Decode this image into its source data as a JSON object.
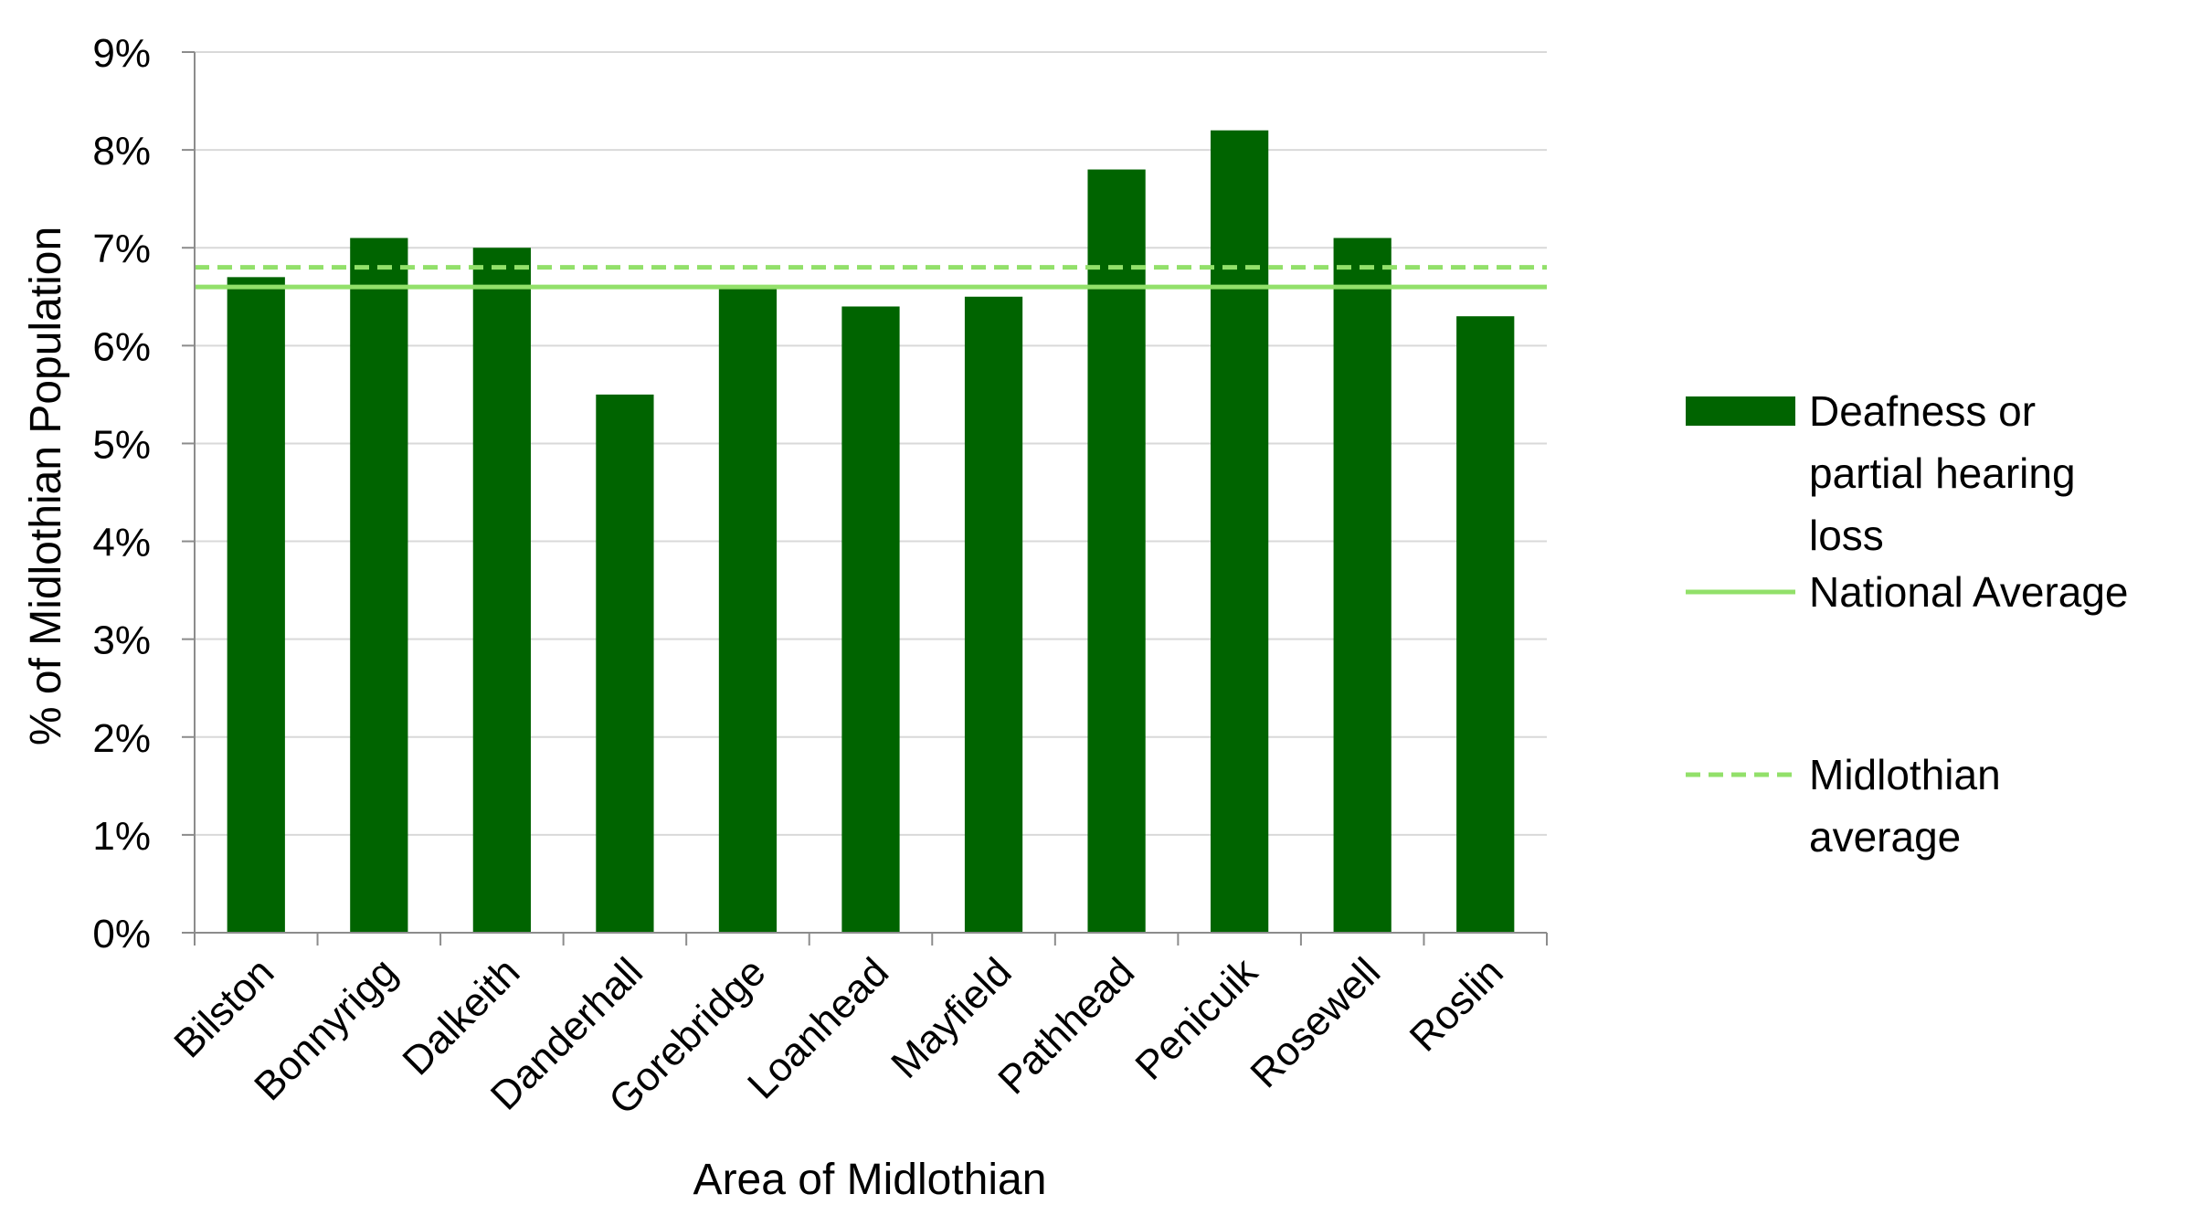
{
  "chart_data": {
    "type": "bar",
    "categories": [
      "Bilston",
      "Bonnyrigg",
      "Dalkeith",
      "Danderhall",
      "Gorebridge",
      "Loanhead",
      "Mayfield",
      "Pathhead",
      "Penicuik",
      "Rosewell",
      "Roslin"
    ],
    "series": [
      {
        "name": "Deafness or partial hearing loss",
        "legend_lines": [
          "Deafness or",
          "partial hearing",
          "loss"
        ],
        "values": [
          6.7,
          7.1,
          7.0,
          5.5,
          6.6,
          6.4,
          6.5,
          7.8,
          8.2,
          7.1,
          6.3
        ],
        "color": "#006400"
      }
    ],
    "reference_lines": [
      {
        "name": "National Average",
        "legend_lines": [
          "National Average"
        ],
        "value": 6.6,
        "style": "solid",
        "color": "#92E06A"
      },
      {
        "name": "Midlothian average",
        "legend_lines": [
          "Midlothian",
          "average"
        ],
        "value": 6.8,
        "style": "dashed",
        "color": "#92E06A"
      }
    ],
    "title": "",
    "xlabel": "Area of Midlothian",
    "ylabel": "% of Midlothian Population",
    "ylim": [
      0,
      9
    ],
    "ytick_labels": [
      "0%",
      "1%",
      "2%",
      "3%",
      "4%",
      "5%",
      "6%",
      "7%",
      "8%",
      "9%"
    ],
    "grid": true,
    "legend_position": "right",
    "colors": {
      "bar": "#006400",
      "reference": "#92E06A",
      "grid": "#D9D9D9",
      "axis": "#8C8C8C"
    }
  }
}
